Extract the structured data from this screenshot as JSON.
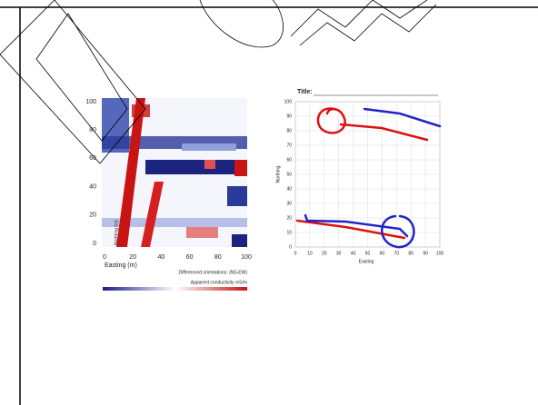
{
  "left_plot": {
    "yticks": [
      100,
      80,
      60,
      40,
      20,
      0
    ],
    "xticks": [
      0,
      20,
      40,
      60,
      80,
      100
    ],
    "ylabel": "Northing (m)",
    "xlabel": "Easting (m)",
    "legend_line1": "Differenced orientations:  (NS-EW)",
    "legend_line2": "Apparent conductivity  mS/m"
  },
  "right_plot": {
    "title": "Title:",
    "yticks": [
      100,
      90,
      80,
      70,
      60,
      50,
      40,
      30,
      20,
      10,
      0
    ],
    "xticks": [
      0,
      10,
      20,
      30,
      40,
      50,
      60,
      70,
      80,
      90,
      100
    ],
    "ylabel": "Northing",
    "xlabel": "Easting"
  }
}
